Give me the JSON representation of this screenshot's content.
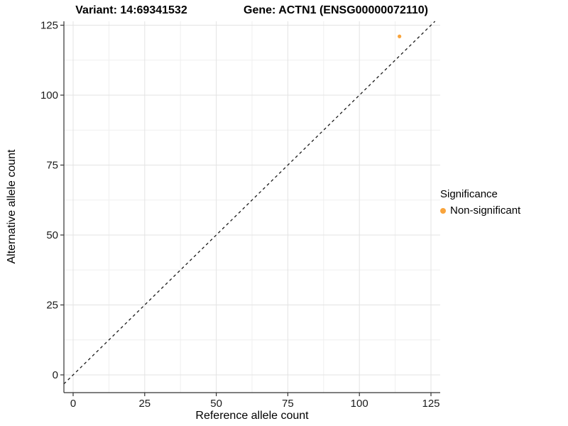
{
  "chart_data": {
    "type": "scatter",
    "title_left": "Variant: 14:69341532",
    "title_right": "Gene: ACTN1 (ENSG00000072110)",
    "xlabel": "Reference allele count",
    "ylabel": "Alternative allele count",
    "xlim": [
      -3.2,
      128.2
    ],
    "ylim": [
      -6.3,
      126.4
    ],
    "x_ticks": [
      0,
      25,
      50,
      75,
      100,
      125
    ],
    "y_ticks": [
      0,
      25,
      50,
      75,
      100,
      125
    ],
    "x_minor": [
      12.5,
      37.5,
      62.5,
      87.5,
      112.5
    ],
    "y_minor": [
      12.5,
      37.5,
      62.5,
      87.5,
      112.5
    ],
    "grid": true,
    "legend_position": "right",
    "legend_title": "Significance",
    "series": [
      {
        "name": "Non-significant",
        "color": "#F9A43B",
        "points": [
          {
            "x": 114,
            "y": 121
          }
        ]
      }
    ],
    "abline": {
      "slope": 1,
      "intercept": 0,
      "style": "dashed"
    }
  },
  "colors": {
    "background": "#FFFFFF",
    "grid_major": "#E3E3E3",
    "grid_minor": "#EFEFEF",
    "axis_line": "#333333",
    "tick_mark": "#333333",
    "tick_label": "#1A1A1A",
    "dashed_line": "#1A1A1A"
  }
}
